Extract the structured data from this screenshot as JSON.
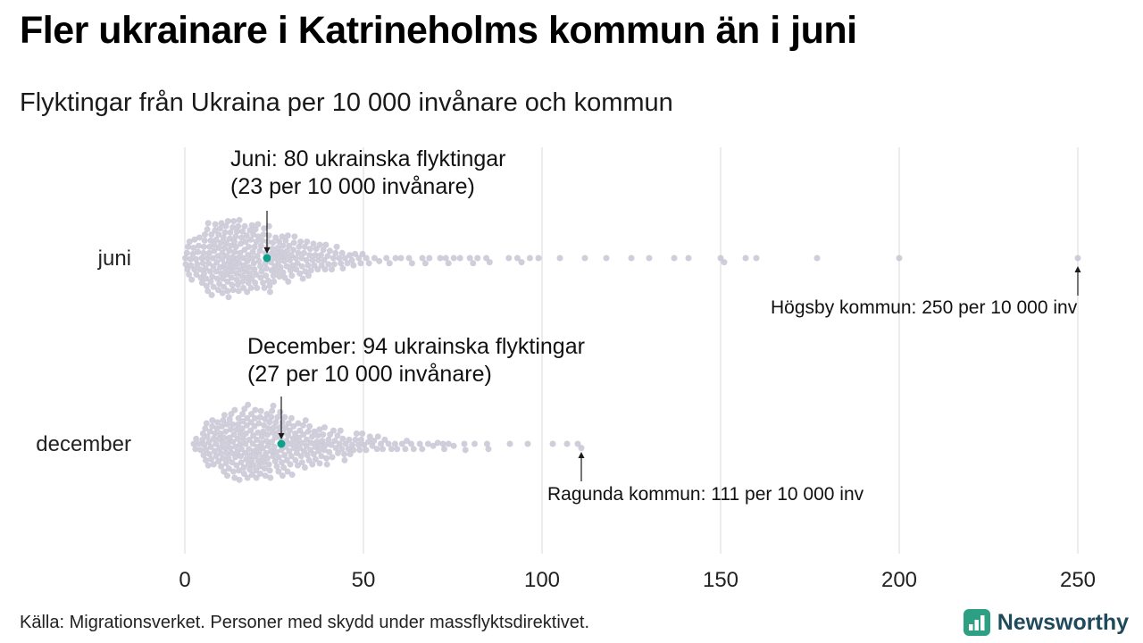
{
  "title": "Fler ukrainare i Katrineholms kommun än i juni",
  "subtitle": "Flyktingar från Ukraina per 10 000 invånare och kommun",
  "source": "Källa: Migrationsverket. Personer med skydd under massflyktsdirektivet.",
  "brand": {
    "name": "Newsworthy",
    "icon_color": "#2da084",
    "text_color": "#1f4a5c"
  },
  "chart_data": {
    "type": "beeswarm",
    "title": "Fler ukrainare i Katrineholms kommun än i juni",
    "xlabel": "",
    "xlim": [
      0,
      250
    ],
    "xticks": [
      0,
      50,
      100,
      150,
      200,
      250
    ],
    "grid": "vertical",
    "dot_color": "#c8c5d3",
    "highlight_color": "#0fa08d",
    "rows": [
      {
        "label": "juni",
        "highlight": {
          "x": 23,
          "persons": 80,
          "label_line1": "Juni: 80 ukrainska flyktingar",
          "label_line2": "(23 per 10 000 invånare)"
        },
        "outlier": {
          "x": 250,
          "label": "Högsby kommun: 250 per 10 000 inv"
        },
        "bins": [
          [
            0,
            5,
            24
          ],
          [
            5,
            10,
            40
          ],
          [
            10,
            15,
            46
          ],
          [
            15,
            20,
            40
          ],
          [
            20,
            25,
            34
          ],
          [
            25,
            30,
            28
          ],
          [
            30,
            35,
            22
          ],
          [
            35,
            40,
            17
          ],
          [
            40,
            45,
            12
          ],
          [
            45,
            50,
            8
          ],
          [
            50,
            55,
            4
          ],
          [
            55,
            60,
            3
          ],
          [
            60,
            65,
            3
          ],
          [
            65,
            70,
            3
          ],
          [
            70,
            75,
            3
          ],
          [
            75,
            80,
            3
          ],
          [
            80,
            85,
            3
          ],
          [
            85,
            90,
            1
          ],
          [
            90,
            95,
            3
          ],
          [
            95,
            100,
            2
          ]
        ],
        "extra": [
          105,
          112,
          118,
          125,
          130,
          137,
          141,
          150,
          151,
          157,
          160,
          177,
          200,
          250
        ]
      },
      {
        "label": "december",
        "highlight": {
          "x": 27,
          "persons": 94,
          "label_line1": "December: 94 ukrainska flyktingar",
          "label_line2": "(27 per 10 000 invånare)"
        },
        "outlier": {
          "x": 111,
          "label": "Ragunda kommun: 111 per 10 000 inv"
        },
        "bins": [
          [
            2,
            5,
            6
          ],
          [
            5,
            10,
            28
          ],
          [
            10,
            15,
            38
          ],
          [
            15,
            20,
            42
          ],
          [
            20,
            25,
            40
          ],
          [
            25,
            30,
            34
          ],
          [
            30,
            35,
            27
          ],
          [
            35,
            40,
            22
          ],
          [
            40,
            45,
            16
          ],
          [
            45,
            50,
            12
          ],
          [
            50,
            55,
            9
          ],
          [
            55,
            60,
            6
          ],
          [
            60,
            65,
            5
          ],
          [
            65,
            70,
            4
          ],
          [
            70,
            75,
            4
          ],
          [
            75,
            80,
            3
          ],
          [
            80,
            85,
            2
          ]
        ],
        "extra": [
          85,
          91,
          96,
          103,
          107,
          110,
          111
        ]
      }
    ]
  }
}
